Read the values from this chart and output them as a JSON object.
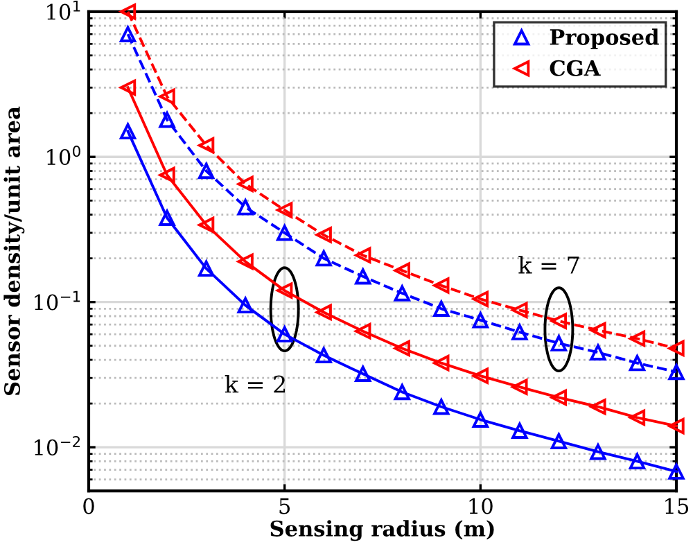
{
  "chart_data": {
    "type": "line",
    "xlabel": "Sensing radius (m)",
    "ylabel": "Sensor density/unit area",
    "x": [
      1,
      2,
      3,
      4,
      5,
      6,
      7,
      8,
      9,
      10,
      11,
      12,
      13,
      14,
      15
    ],
    "series": [
      {
        "name": "Proposed",
        "color": "#0000ff",
        "line_style": "solid",
        "values": [
          1.5,
          0.38,
          0.17,
          0.095,
          0.06,
          0.043,
          0.032,
          0.024,
          0.019,
          0.0155,
          0.013,
          0.011,
          0.0093,
          0.008,
          0.0068
        ]
      },
      {
        "color": "#0000ff",
        "line_style": "dashed",
        "values": [
          7.0,
          1.8,
          0.8,
          0.45,
          0.3,
          0.2,
          0.15,
          0.115,
          0.09,
          0.075,
          0.062,
          0.052,
          0.045,
          0.038,
          0.033
        ]
      },
      {
        "name": "CGA",
        "color": "#ff0000",
        "line_style": "solid",
        "marker": "triangle_left",
        "values": [
          3.0,
          0.75,
          0.34,
          0.19,
          0.12,
          0.085,
          0.063,
          0.048,
          0.038,
          0.031,
          0.026,
          0.022,
          0.019,
          0.016,
          0.014
        ]
      },
      {
        "color": "#ff0000",
        "line_style": "dashed",
        "marker": "triangle_left",
        "values": [
          10,
          2.6,
          1.2,
          0.65,
          0.43,
          0.29,
          0.21,
          0.165,
          0.13,
          0.105,
          0.088,
          0.074,
          0.064,
          0.056,
          0.048
        ]
      }
    ],
    "marker": "triangle",
    "log": "y",
    "xlim": [
      0,
      15
    ],
    "xticks": [
      0,
      5,
      10,
      15
    ],
    "ylim": [
      0.005,
      10
    ],
    "yticks": [
      {
        "value": 0.01,
        "label": "10$^{−2}$"
      },
      {
        "value": 0.1,
        "label": "10$^{−1}$"
      },
      {
        "value": 1,
        "label": "10$^{0}$"
      },
      {
        "value": 10,
        "label": "10$^{1}$"
      }
    ],
    "grid": true,
    "legend": "top right",
    "annotations": [
      {
        "text": "k = 2",
        "x": 5,
        "y": 0.06
      },
      {
        "text": "k = 7",
        "x": 12,
        "y": 0.074
      }
    ]
  }
}
